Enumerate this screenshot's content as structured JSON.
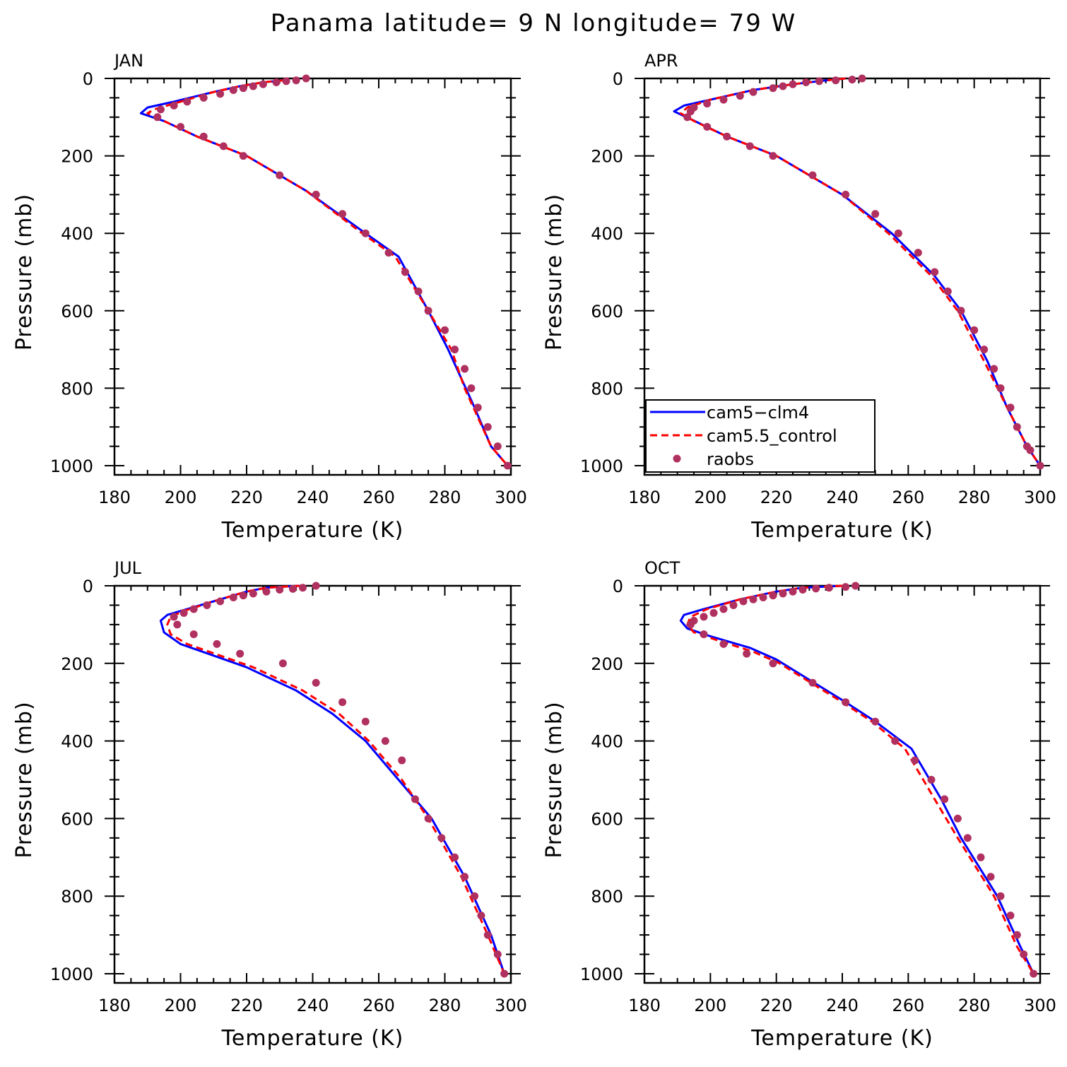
{
  "title": "Panama  latitude= 9 N longitude= 79 W",
  "colors": {
    "cam5_clm4": "#0000ff",
    "cam55_control": "#ff0000",
    "raobs": "#b03060"
  },
  "legend": {
    "panel": 1,
    "entries": [
      "cam5−clm4",
      "cam5.5_control",
      "raobs"
    ]
  },
  "chart_data": [
    {
      "type": "line",
      "title": "JAN",
      "xlabel": "Temperature (K)",
      "ylabel": "Pressure (mb)",
      "xlim": [
        180,
        300
      ],
      "ylim": [
        0,
        1000
      ],
      "y_inverted": true,
      "xticks": [
        180,
        200,
        220,
        240,
        260,
        280,
        300
      ],
      "yticks": [
        0,
        200,
        400,
        600,
        800,
        1000
      ],
      "series": [
        {
          "name": "cam5−clm4",
          "style": "solid",
          "x": [
            231,
            225,
            218,
            210,
            198,
            190,
            188,
            195,
            205,
            220,
            238,
            256,
            266,
            275,
            281,
            289,
            294,
            299
          ],
          "y": [
            5,
            10,
            20,
            35,
            60,
            75,
            90,
            110,
            150,
            200,
            290,
            400,
            460,
            600,
            700,
            850,
            950,
            1000
          ]
        },
        {
          "name": "cam5.5_control",
          "style": "dashed",
          "x": [
            231,
            225,
            218,
            210,
            200,
            192,
            190,
            195,
            205,
            220,
            238,
            255,
            265,
            275,
            282,
            286,
            294,
            299
          ],
          "y": [
            5,
            10,
            20,
            35,
            60,
            80,
            90,
            110,
            150,
            200,
            290,
            400,
            460,
            600,
            700,
            800,
            950,
            1000
          ]
        },
        {
          "name": "raobs",
          "style": "dots",
          "x": [
            238,
            235,
            232,
            229,
            225,
            222,
            219,
            216,
            212,
            207,
            202,
            198,
            194,
            193,
            200,
            207,
            213,
            219,
            230,
            241,
            249,
            256,
            263,
            268,
            272,
            275,
            280,
            283,
            286,
            288,
            290,
            293,
            296,
            299
          ],
          "y": [
            0,
            5,
            7,
            10,
            15,
            20,
            25,
            30,
            40,
            50,
            60,
            70,
            80,
            100,
            125,
            150,
            175,
            200,
            250,
            300,
            350,
            400,
            450,
            500,
            550,
            600,
            650,
            700,
            750,
            800,
            850,
            900,
            950,
            1000
          ]
        }
      ]
    },
    {
      "type": "line",
      "title": "APR",
      "xlabel": "Temperature (K)",
      "ylabel": "Pressure (mb)",
      "xlim": [
        180,
        300
      ],
      "ylim": [
        0,
        1000
      ],
      "y_inverted": true,
      "xticks": [
        180,
        200,
        220,
        240,
        260,
        280,
        300
      ],
      "yticks": [
        0,
        200,
        400,
        600,
        800,
        1000
      ],
      "series": [
        {
          "name": "cam5−clm4",
          "style": "solid",
          "x": [
            241,
            235,
            225,
            213,
            200,
            192,
            189,
            194,
            205,
            220,
            240,
            255,
            268,
            276,
            284,
            290,
            296,
            300
          ],
          "y": [
            0,
            5,
            15,
            30,
            55,
            70,
            85,
            105,
            150,
            200,
            300,
            400,
            510,
            600,
            730,
            850,
            950,
            1000
          ]
        },
        {
          "name": "cam5.5_control",
          "style": "dashed",
          "x": [
            241,
            235,
            225,
            213,
            200,
            193,
            191,
            195,
            205,
            220,
            240,
            254,
            267,
            275,
            283,
            290,
            296,
            300
          ],
          "y": [
            0,
            5,
            15,
            30,
            55,
            75,
            90,
            110,
            150,
            200,
            300,
            400,
            510,
            600,
            730,
            850,
            950,
            1000
          ]
        },
        {
          "name": "raobs",
          "style": "dots",
          "x": [
            246,
            243,
            238,
            233,
            229,
            225,
            222,
            219,
            213,
            209,
            204,
            199,
            195,
            194,
            193,
            199,
            205,
            212,
            219,
            231,
            241,
            250,
            257,
            263,
            268,
            272,
            276,
            280,
            283,
            286,
            288,
            291,
            293,
            296,
            297,
            300
          ],
          "y": [
            0,
            3,
            5,
            7,
            10,
            15,
            20,
            25,
            35,
            45,
            55,
            65,
            75,
            85,
            100,
            125,
            150,
            175,
            200,
            250,
            300,
            350,
            400,
            450,
            500,
            550,
            600,
            650,
            700,
            750,
            800,
            850,
            900,
            950,
            960,
            1000
          ]
        }
      ]
    },
    {
      "type": "line",
      "title": "JUL",
      "xlabel": "Temperature (K)",
      "ylabel": "Pressure (mb)",
      "xlim": [
        180,
        300
      ],
      "ylim": [
        0,
        1000
      ],
      "y_inverted": true,
      "xticks": [
        180,
        200,
        220,
        240,
        260,
        280,
        300
      ],
      "yticks": [
        0,
        200,
        400,
        600,
        800,
        1000
      ],
      "series": [
        {
          "name": "cam5−clm4",
          "style": "solid",
          "x": [
            236,
            226,
            220,
            210,
            200,
            196,
            194,
            195,
            200,
            210,
            220,
            235,
            246,
            256,
            266,
            276,
            286,
            294,
            298
          ],
          "y": [
            0,
            5,
            15,
            40,
            65,
            75,
            90,
            120,
            150,
            180,
            210,
            270,
            330,
            400,
            500,
            600,
            750,
            900,
            1000
          ]
        },
        {
          "name": "cam5.5_control",
          "style": "dashed",
          "x": [
            236,
            226,
            220,
            210,
            201,
            197,
            196,
            197,
            202,
            212,
            222,
            237,
            248,
            257,
            267,
            275,
            285,
            293,
            298
          ],
          "y": [
            0,
            5,
            15,
            40,
            65,
            80,
            100,
            125,
            150,
            180,
            210,
            270,
            330,
            400,
            500,
            600,
            750,
            900,
            1000
          ]
        },
        {
          "name": "raobs",
          "style": "dots",
          "x": [
            241,
            237,
            234,
            230,
            226,
            222,
            219,
            216,
            212,
            208,
            204,
            201,
            198,
            199,
            204,
            211,
            218,
            231,
            241,
            249,
            256,
            262,
            267,
            271,
            275,
            279,
            283,
            286,
            289,
            291,
            293,
            296,
            298
          ],
          "y": [
            0,
            5,
            8,
            10,
            15,
            20,
            25,
            30,
            40,
            50,
            60,
            70,
            80,
            100,
            125,
            150,
            175,
            200,
            250,
            300,
            350,
            400,
            450,
            550,
            600,
            650,
            700,
            750,
            800,
            850,
            900,
            950,
            1000
          ]
        }
      ]
    },
    {
      "type": "line",
      "title": "OCT",
      "xlabel": "Temperature (K)",
      "ylabel": "Pressure (mb)",
      "xlim": [
        180,
        300
      ],
      "ylim": [
        0,
        1000
      ],
      "y_inverted": true,
      "xticks": [
        180,
        200,
        220,
        240,
        260,
        280,
        300
      ],
      "yticks": [
        0,
        200,
        400,
        600,
        800,
        1000
      ],
      "series": [
        {
          "name": "cam5−clm4",
          "style": "solid",
          "x": [
            240,
            228,
            220,
            209,
            198,
            192,
            191,
            193,
            200,
            212,
            220,
            241,
            250,
            261,
            270,
            276,
            287,
            294,
            298
          ],
          "y": [
            0,
            5,
            15,
            35,
            60,
            75,
            90,
            110,
            130,
            160,
            190,
            300,
            350,
            420,
            550,
            650,
            800,
            930,
            1000
          ]
        },
        {
          "name": "cam5.5_control",
          "style": "dashed",
          "x": [
            240,
            228,
            220,
            209,
            199,
            194,
            193,
            195,
            202,
            213,
            221,
            240,
            249,
            259,
            268,
            275,
            286,
            293,
            298
          ],
          "y": [
            0,
            5,
            15,
            35,
            60,
            80,
            100,
            120,
            140,
            170,
            200,
            300,
            350,
            420,
            550,
            650,
            800,
            930,
            1000
          ]
        },
        {
          "name": "raobs",
          "style": "dots",
          "x": [
            244,
            241,
            236,
            232,
            228,
            225,
            222,
            219,
            216,
            213,
            210,
            207,
            204,
            201,
            198,
            195,
            194,
            198,
            204,
            211,
            219,
            231,
            241,
            250,
            256,
            262,
            267,
            271,
            275,
            278,
            282,
            285,
            288,
            291,
            293,
            295,
            298
          ],
          "y": [
            0,
            3,
            5,
            7,
            10,
            15,
            20,
            25,
            30,
            35,
            40,
            50,
            60,
            70,
            80,
            90,
            100,
            125,
            150,
            175,
            200,
            250,
            300,
            350,
            400,
            450,
            500,
            550,
            600,
            650,
            700,
            750,
            800,
            850,
            900,
            950,
            1000
          ]
        }
      ]
    }
  ]
}
